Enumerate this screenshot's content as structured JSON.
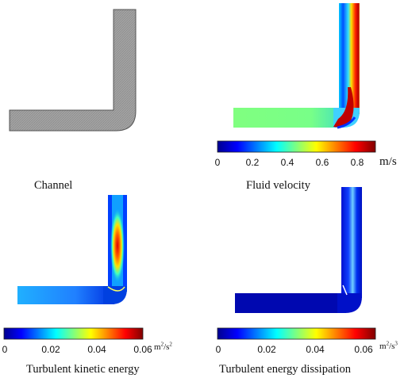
{
  "panels": {
    "channel": {
      "caption": "Channel"
    },
    "velocity": {
      "caption": "Fluid velocity",
      "unit": "m/s",
      "ticks": [
        "0",
        "0.2",
        "0.4",
        "0.6",
        "0.8"
      ],
      "range": [
        0,
        0.9
      ]
    },
    "tke": {
      "caption": "Turbulent kinetic energy",
      "unit_base": "m",
      "unit_sup1": "2",
      "unit_mid": "/s",
      "unit_sup2": "2",
      "ticks": [
        "0",
        "0.02",
        "0.04",
        "0.06"
      ],
      "range": [
        0,
        0.06
      ]
    },
    "dissipation": {
      "caption": "Turbulent energy dissipation",
      "unit_base": "m",
      "unit_sup1": "2",
      "unit_mid": "/s",
      "unit_sup2": "3",
      "ticks": [
        "0",
        "0.02",
        "0.04",
        "0.06"
      ],
      "range": [
        0,
        0.065
      ]
    }
  },
  "colormap": "jet",
  "colors": {
    "channel_fill": "#a8a8a8",
    "channel_stroke": "#555555"
  }
}
